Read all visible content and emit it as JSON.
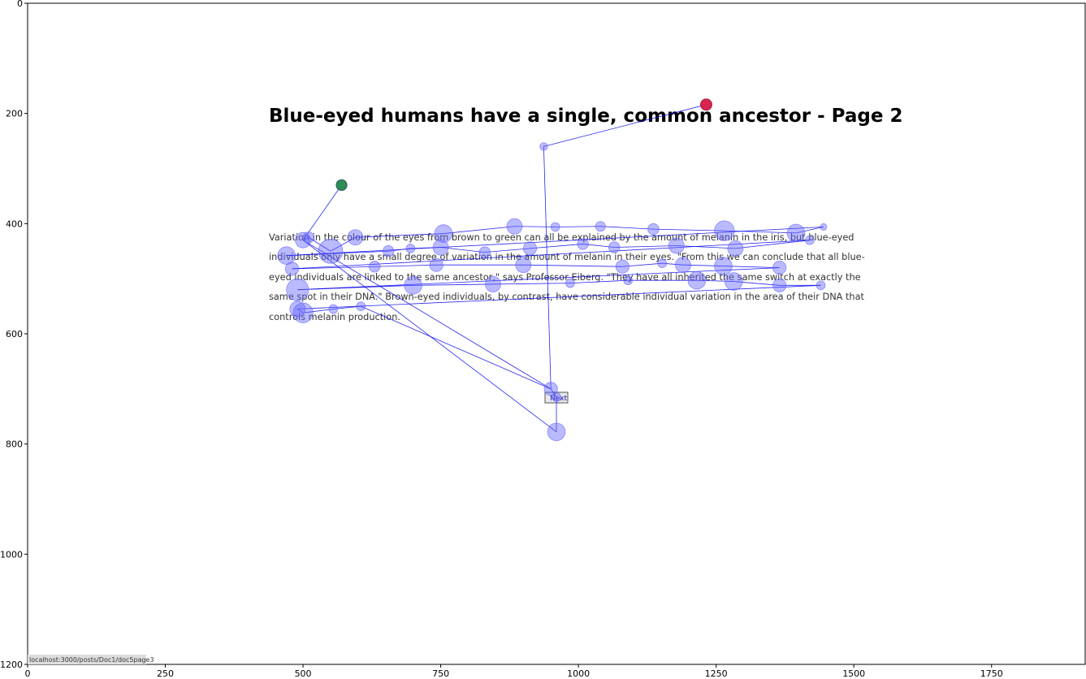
{
  "page": {
    "title": "Blue-eyed humans have a single, common ancestor - Page 2",
    "paragraph_lines": [
      "Variation in the colour of the eyes from brown to green can all be explained by the amount of melanin in the iris, but blue-eyed",
      "individuals only have a small degree of variation in the amount of melanin in their eyes. \"From this we can conclude that all blue-",
      "eyed individuals are linked to the same ancestor,\" says Professor Eiberg. \"They have all inherited the same switch at exactly the",
      "same spot in their DNA.\" Brown-eyed individuals, by contrast, have considerable individual variation in the area of their DNA that",
      "controls melanin production."
    ],
    "next_button_label": "Next",
    "status_url": "localhost:3000/posts/Doc1/doc5page3"
  },
  "chart_data": {
    "type": "scatter",
    "title": "",
    "xlabel": "",
    "ylabel": "",
    "xlim": [
      0,
      1920
    ],
    "ylim": [
      1200,
      0
    ],
    "xticks": [
      0,
      250,
      500,
      750,
      1000,
      1250,
      1500,
      1750
    ],
    "yticks": [
      0,
      200,
      400,
      600,
      800,
      1000,
      1200
    ],
    "grid": false,
    "colors": {
      "fixation": "#6666ff",
      "path": "#0000ee",
      "start": "#2e8b57",
      "end": "#dc143c"
    },
    "start_point": {
      "x": 570,
      "y": 330
    },
    "end_point": {
      "x": 1232,
      "y": 184
    },
    "fixations": [
      {
        "x": 570,
        "y": 330,
        "d": 10
      },
      {
        "x": 500,
        "y": 430,
        "d": 14
      },
      {
        "x": 510,
        "y": 425,
        "d": 10
      },
      {
        "x": 550,
        "y": 450,
        "d": 22
      },
      {
        "x": 595,
        "y": 425,
        "d": 14
      },
      {
        "x": 755,
        "y": 418,
        "d": 16
      },
      {
        "x": 884,
        "y": 405,
        "d": 14
      },
      {
        "x": 958,
        "y": 406,
        "d": 8
      },
      {
        "x": 1040,
        "y": 405,
        "d": 9
      },
      {
        "x": 1136,
        "y": 410,
        "d": 10
      },
      {
        "x": 1265,
        "y": 413,
        "d": 18
      },
      {
        "x": 1395,
        "y": 417,
        "d": 16
      },
      {
        "x": 1445,
        "y": 406,
        "d": 6
      },
      {
        "x": 470,
        "y": 458,
        "d": 16
      },
      {
        "x": 655,
        "y": 450,
        "d": 10
      },
      {
        "x": 695,
        "y": 445,
        "d": 8
      },
      {
        "x": 750,
        "y": 443,
        "d": 14
      },
      {
        "x": 830,
        "y": 452,
        "d": 10
      },
      {
        "x": 912,
        "y": 445,
        "d": 12
      },
      {
        "x": 1008,
        "y": 437,
        "d": 10
      },
      {
        "x": 1065,
        "y": 443,
        "d": 10
      },
      {
        "x": 1178,
        "y": 440,
        "d": 14
      },
      {
        "x": 1285,
        "y": 445,
        "d": 14
      },
      {
        "x": 1420,
        "y": 430,
        "d": 8
      },
      {
        "x": 480,
        "y": 482,
        "d": 12
      },
      {
        "x": 630,
        "y": 478,
        "d": 10
      },
      {
        "x": 742,
        "y": 475,
        "d": 12
      },
      {
        "x": 900,
        "y": 475,
        "d": 14
      },
      {
        "x": 1080,
        "y": 478,
        "d": 12
      },
      {
        "x": 1152,
        "y": 472,
        "d": 8
      },
      {
        "x": 1190,
        "y": 475,
        "d": 14
      },
      {
        "x": 1263,
        "y": 477,
        "d": 16
      },
      {
        "x": 1365,
        "y": 480,
        "d": 12
      },
      {
        "x": 490,
        "y": 520,
        "d": 20
      },
      {
        "x": 700,
        "y": 512,
        "d": 16
      },
      {
        "x": 845,
        "y": 510,
        "d": 14
      },
      {
        "x": 985,
        "y": 508,
        "d": 8
      },
      {
        "x": 1090,
        "y": 503,
        "d": 8
      },
      {
        "x": 1215,
        "y": 503,
        "d": 16
      },
      {
        "x": 1282,
        "y": 505,
        "d": 16
      },
      {
        "x": 1365,
        "y": 512,
        "d": 12
      },
      {
        "x": 1440,
        "y": 512,
        "d": 8
      },
      {
        "x": 490,
        "y": 555,
        "d": 14
      },
      {
        "x": 500,
        "y": 562,
        "d": 18
      },
      {
        "x": 555,
        "y": 555,
        "d": 8
      },
      {
        "x": 605,
        "y": 550,
        "d": 8
      },
      {
        "x": 950,
        "y": 700,
        "d": 12
      },
      {
        "x": 960,
        "y": 715,
        "d": 8
      },
      {
        "x": 960,
        "y": 778,
        "d": 16
      },
      {
        "x": 937,
        "y": 260,
        "d": 7
      },
      {
        "x": 1232,
        "y": 184,
        "d": 10
      }
    ],
    "path_order": [
      0,
      1,
      2,
      3,
      4,
      5,
      6,
      7,
      8,
      9,
      10,
      11,
      12,
      13,
      14,
      15,
      16,
      17,
      18,
      19,
      20,
      21,
      22,
      23,
      24,
      25,
      26,
      27,
      28,
      29,
      30,
      31,
      32,
      33,
      34,
      35,
      36,
      37,
      38,
      39,
      40,
      41,
      42,
      43,
      44,
      45,
      46,
      47,
      48,
      1,
      46,
      49,
      50
    ]
  }
}
